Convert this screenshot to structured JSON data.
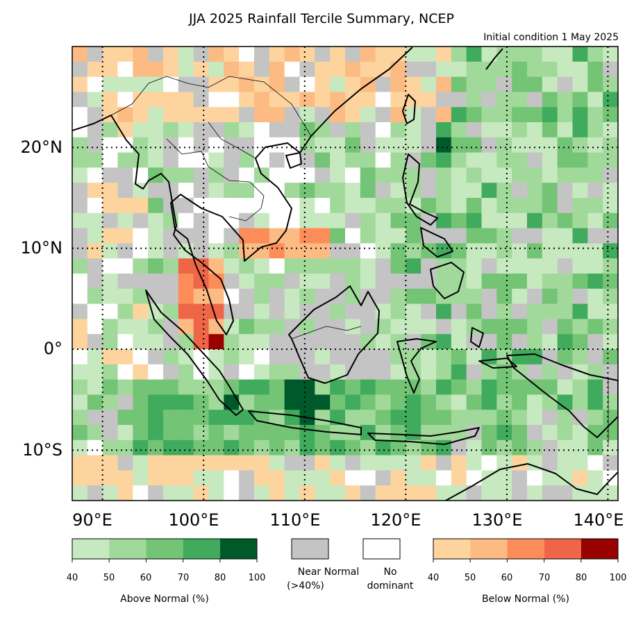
{
  "title": "JJA 2025 Rainfall Tercile Summary, NCEP",
  "subtitle": "Initial condition 1 May 2025",
  "map": {
    "lon_range": [
      87,
      141
    ],
    "lat_range": [
      -15,
      30
    ],
    "lat_labels": [
      "20°N",
      "10°N",
      "0°",
      "10°S"
    ],
    "lon_labels": [
      "90°E",
      "100°E",
      "110°E",
      "120°E",
      "130°E",
      "140°E"
    ]
  },
  "legend": {
    "above": {
      "ticks": [
        "40",
        "50",
        "60",
        "70",
        "80",
        "100"
      ],
      "label": "Above Normal (%)",
      "colors": [
        "#c7e9c0",
        "#a1d99b",
        "#74c476",
        "#41ab5d",
        "#00592a"
      ]
    },
    "near_normal": {
      "label_line1": "Near Normal",
      "label_line2": "(>40%)",
      "color": "#c4c4c4"
    },
    "no_dominant": {
      "label_line1": "No",
      "label_line2": "dominant",
      "color": "#ffffff"
    },
    "below": {
      "ticks": [
        "40",
        "50",
        "60",
        "70",
        "80",
        "100"
      ],
      "label": "Below Normal (%)",
      "colors": [
        "#fdd49e",
        "#fdbb84",
        "#fc8d59",
        "#ef6548",
        "#990000"
      ]
    }
  }
}
